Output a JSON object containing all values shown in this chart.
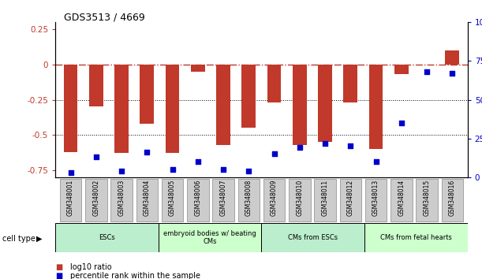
{
  "title": "GDS3513 / 4669",
  "samples": [
    "GSM348001",
    "GSM348002",
    "GSM348003",
    "GSM348004",
    "GSM348005",
    "GSM348006",
    "GSM348007",
    "GSM348008",
    "GSM348009",
    "GSM348010",
    "GSM348011",
    "GSM348012",
    "GSM348013",
    "GSM348014",
    "GSM348015",
    "GSM348016"
  ],
  "log10_ratio": [
    -0.62,
    -0.3,
    -0.63,
    -0.42,
    -0.63,
    -0.05,
    -0.57,
    -0.45,
    -0.27,
    -0.57,
    -0.55,
    -0.27,
    -0.6,
    -0.07,
    0.0,
    0.1
  ],
  "percentile_rank": [
    3,
    13,
    4,
    16,
    5,
    10,
    5,
    4,
    15,
    19,
    22,
    20,
    10,
    35,
    68,
    67
  ],
  "ylim_left": [
    -0.8,
    0.3
  ],
  "ylim_right": [
    0,
    100
  ],
  "bar_color": "#C0392B",
  "dot_color": "#0000CC",
  "cell_type_groups": [
    {
      "label": "ESCs",
      "start": 0,
      "end": 4,
      "color": "#BBEECC"
    },
    {
      "label": "embryoid bodies w/ beating\nCMs",
      "start": 4,
      "end": 8,
      "color": "#CCFFCC"
    },
    {
      "label": "CMs from ESCs",
      "start": 8,
      "end": 12,
      "color": "#BBEECC"
    },
    {
      "label": "CMs from fetal hearts",
      "start": 12,
      "end": 16,
      "color": "#CCFFCC"
    }
  ],
  "legend": [
    {
      "label": "log10 ratio",
      "color": "#C0392B"
    },
    {
      "label": "percentile rank within the sample",
      "color": "#0000CC"
    }
  ]
}
